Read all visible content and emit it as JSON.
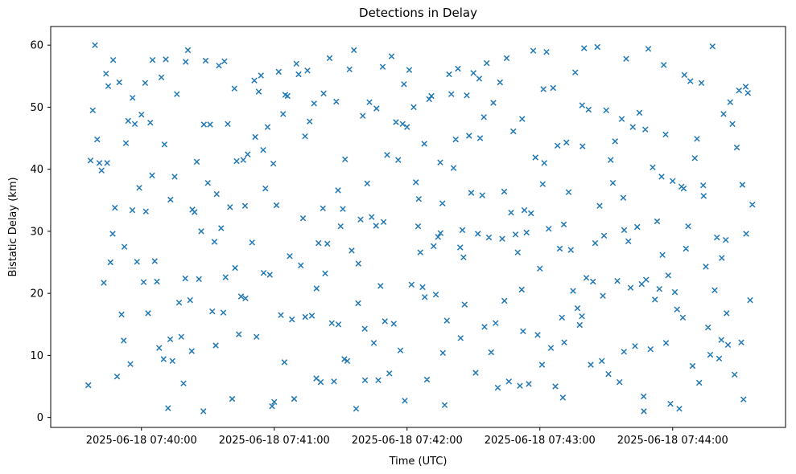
{
  "chart_data": {
    "type": "scatter",
    "title": "Detections in Delay",
    "xlabel": "Time (UTC)",
    "ylabel": "Bistatic Delay (km)",
    "marker": "x",
    "marker_color": "#1f77b4",
    "legend": "none",
    "grid": false,
    "x_unit": "seconds after 2025-06-18 07:39:00 UTC",
    "xlim": [
      19,
      351
    ],
    "ylim": [
      -1.6,
      63.0
    ],
    "x_ticks": [
      {
        "value": 60,
        "label": "2025-06-18 07:40:00"
      },
      {
        "value": 120,
        "label": "2025-06-18 07:41:00"
      },
      {
        "value": 180,
        "label": "2025-06-18 07:42:00"
      },
      {
        "value": 240,
        "label": "2025-06-18 07:43:00"
      },
      {
        "value": 300,
        "label": "2025-06-18 07:44:00"
      }
    ],
    "y_ticks": [
      0,
      10,
      20,
      30,
      40,
      50,
      60
    ],
    "points": [
      [
        36,
        5.2
      ],
      [
        38,
        49.5
      ],
      [
        40,
        44.8
      ],
      [
        41,
        41.0
      ],
      [
        42,
        39.8
      ],
      [
        44,
        55.4
      ],
      [
        45,
        53.4
      ],
      [
        47,
        29.6
      ],
      [
        48,
        33.8
      ],
      [
        49,
        6.6
      ],
      [
        50,
        54.0
      ],
      [
        51,
        16.6
      ],
      [
        52,
        12.4
      ],
      [
        53,
        44.2
      ],
      [
        54,
        47.8
      ],
      [
        55,
        8.6
      ],
      [
        56,
        51.5
      ],
      [
        57,
        47.3
      ],
      [
        58,
        25.1
      ],
      [
        59,
        37.0
      ],
      [
        60,
        48.8
      ],
      [
        61,
        21.8
      ],
      [
        62,
        33.2
      ],
      [
        63,
        16.8
      ],
      [
        64,
        47.5
      ],
      [
        66,
        25.2
      ],
      [
        67,
        21.9
      ],
      [
        68,
        11.2
      ],
      [
        69,
        54.8
      ],
      [
        70,
        9.4
      ],
      [
        71,
        57.7
      ],
      [
        72,
        1.5
      ],
      [
        73,
        12.6
      ],
      [
        74,
        9.1
      ],
      [
        75,
        38.8
      ],
      [
        76,
        52.1
      ],
      [
        77,
        18.5
      ],
      [
        78,
        13.0
      ],
      [
        79,
        5.5
      ],
      [
        80,
        57.3
      ],
      [
        81,
        59.2
      ],
      [
        82,
        18.9
      ],
      [
        83,
        33.5
      ],
      [
        84,
        33.1
      ],
      [
        85,
        41.2
      ],
      [
        86,
        22.3
      ],
      [
        87,
        30.0
      ],
      [
        88,
        1.0
      ],
      [
        89,
        57.5
      ],
      [
        90,
        37.8
      ],
      [
        91,
        47.2
      ],
      [
        92,
        17.1
      ],
      [
        94,
        36.0
      ],
      [
        95,
        56.7
      ],
      [
        96,
        30.5
      ],
      [
        97,
        16.9
      ],
      [
        98,
        22.6
      ],
      [
        99,
        47.3
      ],
      [
        100,
        33.9
      ],
      [
        101,
        3.0
      ],
      [
        102,
        53.0
      ],
      [
        103,
        41.3
      ],
      [
        104,
        13.4
      ],
      [
        105,
        19.5
      ],
      [
        106,
        41.5
      ],
      [
        107,
        19.2
      ],
      [
        108,
        42.4
      ],
      [
        110,
        28.2
      ],
      [
        111,
        54.3
      ],
      [
        112,
        13.0
      ],
      [
        113,
        52.5
      ],
      [
        114,
        55.1
      ],
      [
        115,
        43.1
      ],
      [
        116,
        36.9
      ],
      [
        117,
        46.8
      ],
      [
        118,
        23.0
      ],
      [
        119,
        1.8
      ],
      [
        120,
        2.5
      ],
      [
        121,
        34.2
      ],
      [
        122,
        55.7
      ],
      [
        123,
        16.5
      ],
      [
        124,
        48.9
      ],
      [
        125,
        52.0
      ],
      [
        126,
        51.8
      ],
      [
        127,
        26.0
      ],
      [
        128,
        15.8
      ],
      [
        129,
        3.0
      ],
      [
        130,
        57.0
      ],
      [
        131,
        55.3
      ],
      [
        132,
        24.5
      ],
      [
        133,
        32.1
      ],
      [
        134,
        16.2
      ],
      [
        135,
        55.9
      ],
      [
        136,
        47.7
      ],
      [
        137,
        16.4
      ],
      [
        138,
        50.6
      ],
      [
        139,
        6.3
      ],
      [
        140,
        28.1
      ],
      [
        141,
        5.7
      ],
      [
        142,
        33.7
      ],
      [
        143,
        23.2
      ],
      [
        144,
        28.0
      ],
      [
        145,
        57.9
      ],
      [
        146,
        15.2
      ],
      [
        147,
        5.8
      ],
      [
        148,
        50.9
      ],
      [
        149,
        15.0
      ],
      [
        150,
        30.8
      ],
      [
        151,
        33.6
      ],
      [
        152,
        41.6
      ],
      [
        153,
        9.1
      ],
      [
        154,
        56.1
      ],
      [
        155,
        26.9
      ],
      [
        156,
        59.2
      ],
      [
        157,
        1.4
      ],
      [
        158,
        24.8
      ],
      [
        159,
        31.9
      ],
      [
        160,
        48.6
      ],
      [
        161,
        6.0
      ],
      [
        162,
        37.7
      ],
      [
        163,
        50.8
      ],
      [
        164,
        32.3
      ],
      [
        165,
        12.0
      ],
      [
        166,
        30.9
      ],
      [
        167,
        6.0
      ],
      [
        168,
        21.2
      ],
      [
        169,
        56.5
      ],
      [
        170,
        15.5
      ],
      [
        171,
        42.3
      ],
      [
        172,
        7.1
      ],
      [
        173,
        58.2
      ],
      [
        174,
        15.1
      ],
      [
        175,
        47.6
      ],
      [
        176,
        41.5
      ],
      [
        177,
        10.8
      ],
      [
        178,
        47.3
      ],
      [
        179,
        2.7
      ],
      [
        180,
        46.8
      ],
      [
        181,
        56.0
      ],
      [
        182,
        21.4
      ],
      [
        183,
        50.0
      ],
      [
        184,
        37.9
      ],
      [
        185,
        30.8
      ],
      [
        186,
        26.6
      ],
      [
        187,
        21.0
      ],
      [
        188,
        19.4
      ],
      [
        189,
        6.1
      ],
      [
        190,
        51.3
      ],
      [
        191,
        51.8
      ],
      [
        192,
        27.6
      ],
      [
        193,
        19.8
      ],
      [
        194,
        29.1
      ],
      [
        195,
        41.1
      ],
      [
        196,
        34.5
      ],
      [
        197,
        2.0
      ],
      [
        198,
        15.6
      ],
      [
        199,
        55.3
      ],
      [
        200,
        52.1
      ],
      [
        201,
        40.2
      ],
      [
        202,
        44.8
      ],
      [
        203,
        56.2
      ],
      [
        204,
        27.4
      ],
      [
        205,
        30.2
      ],
      [
        206,
        18.2
      ],
      [
        207,
        51.9
      ],
      [
        208,
        45.4
      ],
      [
        209,
        36.2
      ],
      [
        210,
        55.5
      ],
      [
        211,
        7.2
      ],
      [
        212,
        29.6
      ],
      [
        213,
        45.0
      ],
      [
        214,
        35.8
      ],
      [
        215,
        14.6
      ],
      [
        216,
        57.1
      ],
      [
        217,
        29.0
      ],
      [
        218,
        10.5
      ],
      [
        219,
        50.7
      ],
      [
        220,
        15.2
      ],
      [
        221,
        4.8
      ],
      [
        222,
        54.0
      ],
      [
        223,
        28.8
      ],
      [
        224,
        18.8
      ],
      [
        225,
        57.9
      ],
      [
        226,
        5.8
      ],
      [
        227,
        33.0
      ],
      [
        228,
        46.1
      ],
      [
        229,
        29.5
      ],
      [
        230,
        26.6
      ],
      [
        231,
        5.1
      ],
      [
        232,
        48.1
      ],
      [
        233,
        33.4
      ],
      [
        234,
        29.8
      ],
      [
        235,
        5.4
      ],
      [
        236,
        32.9
      ],
      [
        237,
        59.1
      ],
      [
        238,
        41.9
      ],
      [
        239,
        13.3
      ],
      [
        240,
        24.0
      ],
      [
        241,
        8.5
      ],
      [
        242,
        41.0
      ],
      [
        243,
        58.9
      ],
      [
        244,
        30.4
      ],
      [
        245,
        11.2
      ],
      [
        246,
        53.1
      ],
      [
        247,
        5.0
      ],
      [
        248,
        43.8
      ],
      [
        249,
        27.2
      ],
      [
        250,
        16.1
      ],
      [
        251,
        12.1
      ],
      [
        252,
        44.3
      ],
      [
        253,
        36.3
      ],
      [
        254,
        27.0
      ],
      [
        255,
        20.4
      ],
      [
        256,
        55.6
      ],
      [
        257,
        17.6
      ],
      [
        258,
        14.9
      ],
      [
        259,
        16.3
      ],
      [
        260,
        59.5
      ],
      [
        261,
        22.5
      ],
      [
        262,
        49.6
      ],
      [
        263,
        8.5
      ],
      [
        264,
        21.9
      ],
      [
        265,
        28.1
      ],
      [
        266,
        59.7
      ],
      [
        267,
        34.1
      ],
      [
        268,
        9.1
      ],
      [
        269,
        29.3
      ],
      [
        270,
        49.5
      ],
      [
        271,
        7.0
      ],
      [
        272,
        41.5
      ],
      [
        273,
        37.8
      ],
      [
        274,
        44.5
      ],
      [
        275,
        22.0
      ],
      [
        276,
        5.7
      ],
      [
        277,
        48.1
      ],
      [
        278,
        10.6
      ],
      [
        279,
        57.8
      ],
      [
        280,
        28.4
      ],
      [
        281,
        20.9
      ],
      [
        282,
        46.8
      ],
      [
        283,
        11.5
      ],
      [
        284,
        30.7
      ],
      [
        285,
        49.1
      ],
      [
        286,
        21.5
      ],
      [
        287,
        1.0
      ],
      [
        288,
        22.2
      ],
      [
        289,
        59.4
      ],
      [
        290,
        11.0
      ],
      [
        291,
        40.3
      ],
      [
        292,
        19.0
      ],
      [
        293,
        31.6
      ],
      [
        294,
        20.7
      ],
      [
        295,
        38.8
      ],
      [
        296,
        56.8
      ],
      [
        297,
        12.0
      ],
      [
        298,
        22.9
      ],
      [
        299,
        2.2
      ],
      [
        300,
        38.1
      ],
      [
        301,
        20.2
      ],
      [
        302,
        17.4
      ],
      [
        303,
        1.4
      ],
      [
        304,
        37.2
      ],
      [
        305,
        36.9
      ],
      [
        306,
        27.2
      ],
      [
        307,
        30.8
      ],
      [
        308,
        54.2
      ],
      [
        309,
        8.3
      ],
      [
        310,
        41.8
      ],
      [
        311,
        44.9
      ],
      [
        312,
        5.6
      ],
      [
        313,
        53.9
      ],
      [
        314,
        35.7
      ],
      [
        315,
        24.3
      ],
      [
        316,
        14.5
      ],
      [
        317,
        10.1
      ],
      [
        318,
        59.8
      ],
      [
        319,
        20.5
      ],
      [
        320,
        29.0
      ],
      [
        321,
        9.5
      ],
      [
        322,
        12.5
      ],
      [
        323,
        48.9
      ],
      [
        324,
        28.6
      ],
      [
        325,
        11.7
      ],
      [
        326,
        50.8
      ],
      [
        327,
        47.3
      ],
      [
        328,
        6.9
      ],
      [
        329,
        43.5
      ],
      [
        330,
        52.7
      ],
      [
        331,
        12.1
      ],
      [
        332,
        2.9
      ],
      [
        333,
        53.3
      ],
      [
        334,
        52.3
      ],
      [
        335,
        18.9
      ],
      [
        336,
        34.3
      ],
      [
        37,
        41.4
      ],
      [
        39,
        60.0
      ],
      [
        43,
        21.7
      ],
      [
        46,
        25.0
      ],
      [
        65,
        57.6
      ],
      [
        93,
        28.3
      ],
      [
        44.5,
        41.0
      ],
      [
        52.3,
        27.5
      ],
      [
        61.7,
        53.9
      ],
      [
        70.4,
        44.0
      ],
      [
        79.8,
        22.4
      ],
      [
        88.2,
        47.2
      ],
      [
        97.5,
        57.4
      ],
      [
        106.8,
        34.1
      ],
      [
        115.2,
        23.3
      ],
      [
        124.6,
        8.9
      ],
      [
        133.9,
        45.3
      ],
      [
        142.3,
        52.2
      ],
      [
        151.7,
        9.4
      ],
      [
        160.9,
        14.3
      ],
      [
        169.4,
        31.5
      ],
      [
        178.6,
        53.7
      ],
      [
        187.8,
        44.1
      ],
      [
        196.2,
        10.4
      ],
      [
        205.5,
        25.8
      ],
      [
        214.7,
        48.4
      ],
      [
        223.9,
        36.4
      ],
      [
        232.4,
        13.9
      ],
      [
        241.6,
        52.9
      ],
      [
        250.8,
        31.1
      ],
      [
        259.3,
        43.7
      ],
      [
        268.5,
        19.6
      ],
      [
        277.7,
        35.4
      ],
      [
        286.9,
        3.4
      ],
      [
        295.4,
        26.2
      ],
      [
        304.6,
        16.1
      ],
      [
        313.8,
        37.4
      ],
      [
        322.2,
        25.7
      ],
      [
        331.5,
        37.5
      ],
      [
        47.2,
        57.6
      ],
      [
        93.6,
        11.6
      ],
      [
        139.1,
        20.8
      ],
      [
        185.3,
        35.2
      ],
      [
        231.8,
        20.6
      ],
      [
        278.1,
        30.2
      ],
      [
        324.4,
        16.8
      ],
      [
        55.9,
        33.4
      ],
      [
        102.3,
        24.1
      ],
      [
        148.8,
        36.6
      ],
      [
        195.1,
        29.7
      ],
      [
        241.3,
        37.6
      ],
      [
        287.6,
        46.4
      ],
      [
        333.2,
        29.6
      ],
      [
        64.8,
        39.0
      ],
      [
        111.4,
        45.2
      ],
      [
        157.9,
        18.4
      ],
      [
        204.2,
        12.8
      ],
      [
        250.4,
        3.2
      ],
      [
        296.8,
        45.6
      ],
      [
        73.1,
        35.1
      ],
      [
        119.6,
        40.9
      ],
      [
        166.2,
        49.8
      ],
      [
        212.6,
        54.6
      ],
      [
        259.1,
        50.3
      ],
      [
        305.3,
        55.2
      ],
      [
        82.7,
        10.7
      ]
    ]
  }
}
